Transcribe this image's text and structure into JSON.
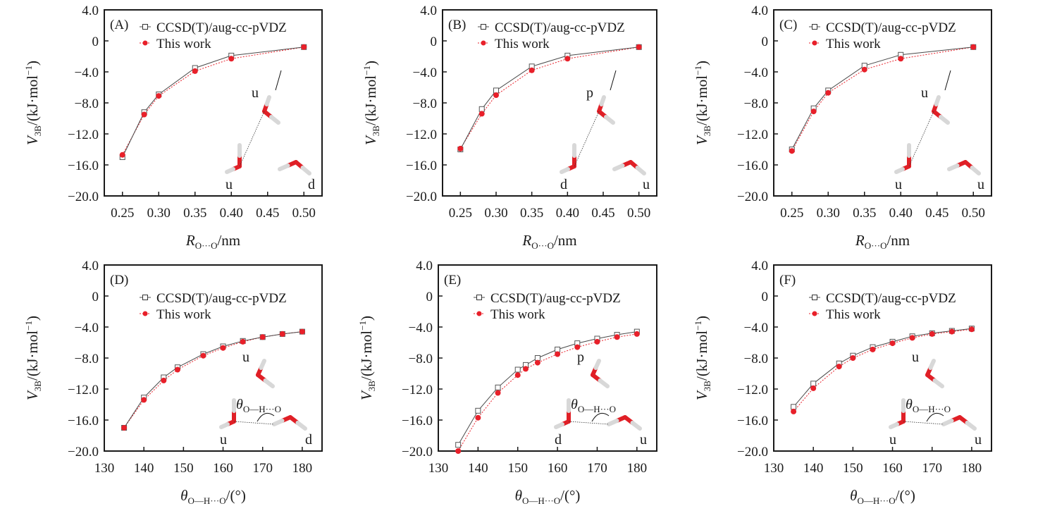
{
  "figure": {
    "legend": {
      "ref_label": "CCSD(T)/aug-cc-pVDZ",
      "fit_label": "This work"
    },
    "ylabel": {
      "main": "V",
      "sub": "3B",
      "unit": "/(kJ·mol",
      "sup": "−1",
      "close": ")"
    },
    "xlabel_R": {
      "main": "R",
      "sub": "O···O",
      "unit": "/nm"
    },
    "xlabel_theta": {
      "main": "θ",
      "sub": "O—H···O",
      "unit": "/(°)"
    },
    "theta_inset": {
      "main": "θ",
      "sub": "O—H···O"
    },
    "colors": {
      "ref": "#4a4a4a",
      "fit": "#e8202a",
      "oxygen": "#e01f26",
      "hydrogen": "#d8d8d8"
    }
  },
  "chart_data": [
    {
      "type": "line",
      "panel": "(A)",
      "title": "",
      "xlabel": "R O···O /nm",
      "ylabel": "V3B/(kJ·mol−1)",
      "xlim": [
        0.225,
        0.525
      ],
      "ylim": [
        -20.0,
        4.0
      ],
      "xticks": [
        "0.25",
        "0.30",
        "0.35",
        "0.40",
        "0.45",
        "0.50"
      ],
      "xtick_values": [
        0.25,
        0.3,
        0.35,
        0.4,
        0.45,
        0.5
      ],
      "yticks": [
        "4.0",
        "0",
        "−4.0",
        "−8.0",
        "−12.0",
        "−16.0",
        "−20.0"
      ],
      "ytick_values": [
        4,
        0,
        -4,
        -8,
        -12,
        -16,
        -20
      ],
      "legend_position": "top-right",
      "x": [
        0.25,
        0.28,
        0.3,
        0.35,
        0.4,
        0.5
      ],
      "series": [
        {
          "name": "CCSD(T)/aug-cc-pVDZ",
          "values": [
            -15.0,
            -9.2,
            -6.9,
            -3.5,
            -1.9,
            -0.8
          ]
        },
        {
          "name": "This work",
          "values": [
            -14.7,
            -9.5,
            -7.1,
            -3.9,
            -2.3,
            -0.8
          ]
        }
      ],
      "molecule_labels": [
        "u",
        "u",
        "d"
      ]
    },
    {
      "type": "line",
      "panel": "(B)",
      "title": "",
      "xlabel": "R O···O /nm",
      "ylabel": "V3B/(kJ·mol−1)",
      "xlim": [
        0.225,
        0.525
      ],
      "ylim": [
        -20.0,
        4.0
      ],
      "xticks": [
        "0.25",
        "0.30",
        "0.35",
        "0.40",
        "0.45",
        "0.50"
      ],
      "xtick_values": [
        0.25,
        0.3,
        0.35,
        0.4,
        0.45,
        0.5
      ],
      "yticks": [
        "4.0",
        "0",
        "−4.0",
        "−8.0",
        "−12.0",
        "−16.0",
        "−20.0"
      ],
      "ytick_values": [
        4,
        0,
        -4,
        -8,
        -12,
        -16,
        -20
      ],
      "legend_position": "top-right",
      "x": [
        0.25,
        0.28,
        0.3,
        0.35,
        0.4,
        0.5
      ],
      "series": [
        {
          "name": "CCSD(T)/aug-cc-pVDZ",
          "values": [
            -14.0,
            -8.8,
            -6.4,
            -3.3,
            -1.9,
            -0.8
          ]
        },
        {
          "name": "This work",
          "values": [
            -13.9,
            -9.4,
            -7.0,
            -3.8,
            -2.3,
            -0.8
          ]
        }
      ],
      "molecule_labels": [
        "p",
        "d",
        "u"
      ]
    },
    {
      "type": "line",
      "panel": "(C)",
      "title": "",
      "xlabel": "R O···O /nm",
      "ylabel": "V3B/(kJ·mol−1)",
      "xlim": [
        0.225,
        0.525
      ],
      "ylim": [
        -20.0,
        4.0
      ],
      "xticks": [
        "0.25",
        "0.30",
        "0.35",
        "0.40",
        "0.45",
        "0.50"
      ],
      "xtick_values": [
        0.25,
        0.3,
        0.35,
        0.4,
        0.45,
        0.5
      ],
      "yticks": [
        "4.0",
        "0",
        "−4.0",
        "−8.0",
        "−12.0",
        "−16.0",
        "−20.0"
      ],
      "ytick_values": [
        4,
        0,
        -4,
        -8,
        -12,
        -16,
        -20
      ],
      "legend_position": "top-right",
      "x": [
        0.25,
        0.28,
        0.3,
        0.35,
        0.4,
        0.5
      ],
      "series": [
        {
          "name": "CCSD(T)/aug-cc-pVDZ",
          "values": [
            -14.0,
            -8.7,
            -6.4,
            -3.2,
            -1.8,
            -0.8
          ]
        },
        {
          "name": "This work",
          "values": [
            -14.2,
            -9.1,
            -6.7,
            -3.7,
            -2.3,
            -0.8
          ]
        }
      ],
      "molecule_labels": [
        "u",
        "u",
        "u"
      ]
    },
    {
      "type": "line",
      "panel": "(D)",
      "title": "",
      "xlabel": "θ O—H···O /(°)",
      "ylabel": "V3B/(kJ·mol−1)",
      "xlim": [
        130,
        185
      ],
      "ylim": [
        -20.0,
        4.0
      ],
      "xticks": [
        "130",
        "140",
        "150",
        "160",
        "170",
        "180"
      ],
      "xtick_values": [
        130,
        140,
        150,
        160,
        170,
        180
      ],
      "yticks": [
        "4.0",
        "0",
        "−4.0",
        "−8.0",
        "−12.0",
        "−16.0",
        "−20.0"
      ],
      "ytick_values": [
        4,
        0,
        -4,
        -8,
        -12,
        -16,
        -20
      ],
      "legend_position": "top-right",
      "x": [
        135,
        140,
        145,
        148.5,
        155,
        160,
        165,
        170,
        175,
        180
      ],
      "series": [
        {
          "name": "CCSD(T)/aug-cc-pVDZ",
          "values": [
            -17.0,
            -13.1,
            -10.5,
            -9.2,
            -7.5,
            -6.5,
            -5.8,
            -5.3,
            -4.9,
            -4.6
          ]
        },
        {
          "name": "This work",
          "values": [
            -17.0,
            -13.4,
            -10.9,
            -9.5,
            -7.7,
            -6.7,
            -5.9,
            -5.3,
            -4.9,
            -4.6
          ]
        }
      ],
      "molecule_labels": [
        "u",
        "u",
        "d"
      ]
    },
    {
      "type": "line",
      "panel": "(E)",
      "title": "",
      "xlabel": "θ O—H···O /(°)",
      "ylabel": "V3B/(kJ·mol−1)",
      "xlim": [
        130,
        185
      ],
      "ylim": [
        -20.0,
        4.0
      ],
      "xticks": [
        "130",
        "140",
        "150",
        "160",
        "170",
        "180"
      ],
      "xtick_values": [
        130,
        140,
        150,
        160,
        170,
        180
      ],
      "yticks": [
        "4.0",
        "0",
        "−4.0",
        "−8.0",
        "−12.0",
        "−16.0",
        "−20.0"
      ],
      "ytick_values": [
        4,
        0,
        -4,
        -8,
        -12,
        -16,
        -20
      ],
      "legend_position": "top-right",
      "x": [
        135,
        140,
        145,
        150,
        152,
        155,
        160,
        165,
        170,
        175,
        180
      ],
      "series": [
        {
          "name": "CCSD(T)/aug-cc-pVDZ",
          "values": [
            -19.2,
            -14.8,
            -11.8,
            -9.5,
            -8.9,
            -8.0,
            -6.9,
            -6.1,
            -5.5,
            -5.0,
            -4.6
          ]
        },
        {
          "name": "This work",
          "values": [
            -20.0,
            -15.7,
            -12.5,
            -10.2,
            -9.4,
            -8.6,
            -7.5,
            -6.6,
            -5.9,
            -5.3,
            -4.9
          ]
        }
      ],
      "molecule_labels": [
        "p",
        "d",
        "u"
      ]
    },
    {
      "type": "line",
      "panel": "(F)",
      "title": "",
      "xlabel": "θ O—H···O /(°)",
      "ylabel": "V3B/(kJ·mol−1)",
      "xlim": [
        130,
        185
      ],
      "ylim": [
        -20.0,
        4.0
      ],
      "xticks": [
        "130",
        "140",
        "150",
        "160",
        "170",
        "180"
      ],
      "xtick_values": [
        130,
        140,
        150,
        160,
        170,
        180
      ],
      "yticks": [
        "4.0",
        "0",
        "−4.0",
        "−8.0",
        "−12.0",
        "−16.0",
        "−20.0"
      ],
      "ytick_values": [
        4,
        0,
        -4,
        -8,
        -12,
        -16,
        -20
      ],
      "legend_position": "top-right",
      "x": [
        135,
        140,
        146.5,
        150,
        155,
        160,
        165,
        170,
        175,
        180
      ],
      "series": [
        {
          "name": "CCSD(T)/aug-cc-pVDZ",
          "values": [
            -14.3,
            -11.3,
            -8.7,
            -7.7,
            -6.6,
            -5.9,
            -5.2,
            -4.8,
            -4.5,
            -4.2
          ]
        },
        {
          "name": "This work",
          "values": [
            -14.9,
            -11.9,
            -9.1,
            -8.0,
            -6.9,
            -6.1,
            -5.4,
            -4.9,
            -4.6,
            -4.3
          ]
        }
      ],
      "molecule_labels": [
        "u",
        "u",
        "u"
      ]
    }
  ]
}
